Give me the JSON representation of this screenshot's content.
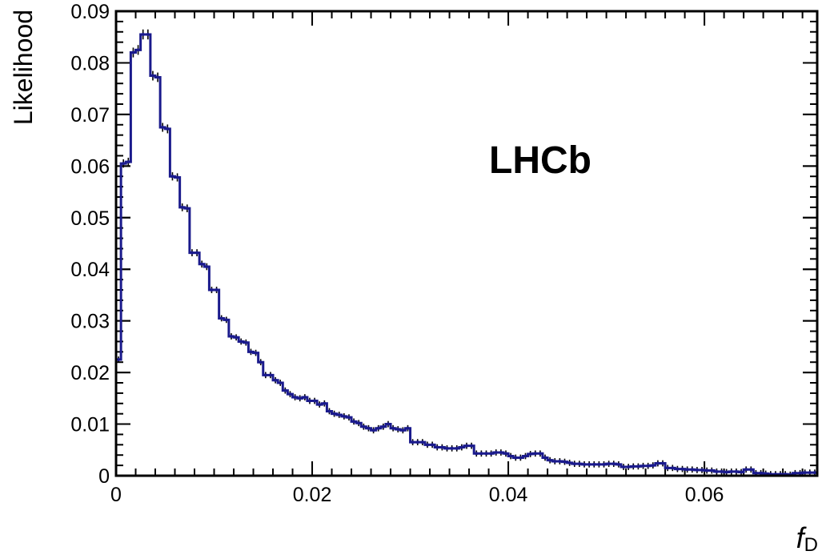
{
  "chart_data": {
    "type": "histogram",
    "annotation": "LHCb",
    "xlabel_symbol": "f",
    "xlabel_sub": "D",
    "ylabel": "Likelihood",
    "xlim": [
      0,
      0.0715
    ],
    "ylim": [
      0,
      0.09
    ],
    "xticks": [
      0,
      0.02,
      0.04,
      0.06
    ],
    "xtick_labels": [
      "0",
      "0.02",
      "0.04",
      "0.06"
    ],
    "yticks": [
      0,
      0.01,
      0.02,
      0.03,
      0.04,
      0.05,
      0.06,
      0.07,
      0.08,
      0.09
    ],
    "ytick_labels": [
      "0",
      "0.01",
      "0.02",
      "0.03",
      "0.04",
      "0.05",
      "0.06",
      "0.07",
      "0.08",
      "0.09"
    ],
    "bin_width": 0.0005,
    "line_color": "#1a1a8c",
    "values": [
      0.0225,
      0.0605,
      0.0608,
      0.082,
      0.0825,
      0.0855,
      0.0855,
      0.0775,
      0.0772,
      0.0675,
      0.0672,
      0.058,
      0.0578,
      0.052,
      0.0518,
      0.0432,
      0.0432,
      0.041,
      0.0405,
      0.036,
      0.036,
      0.0305,
      0.0302,
      0.027,
      0.0268,
      0.026,
      0.0258,
      0.024,
      0.0238,
      0.022,
      0.0195,
      0.0195,
      0.0185,
      0.018,
      0.0165,
      0.0158,
      0.0152,
      0.015,
      0.0152,
      0.0145,
      0.0145,
      0.0138,
      0.014,
      0.0125,
      0.012,
      0.0118,
      0.0115,
      0.0113,
      0.0105,
      0.0102,
      0.0095,
      0.0092,
      0.0088,
      0.0092,
      0.0095,
      0.01,
      0.0092,
      0.009,
      0.0088,
      0.0092,
      0.0065,
      0.0065,
      0.0065,
      0.006,
      0.006,
      0.0055,
      0.0055,
      0.0053,
      0.0053,
      0.0053,
      0.0055,
      0.0058,
      0.0058,
      0.0043,
      0.0043,
      0.0043,
      0.0043,
      0.0045,
      0.0045,
      0.0043,
      0.0038,
      0.0035,
      0.0035,
      0.0038,
      0.0042,
      0.0043,
      0.0043,
      0.0035,
      0.003,
      0.0028,
      0.0028,
      0.0027,
      0.0025,
      0.0023,
      0.0023,
      0.0022,
      0.0022,
      0.0022,
      0.0022,
      0.0022,
      0.0023,
      0.0023,
      0.0022,
      0.0017,
      0.0017,
      0.0018,
      0.0018,
      0.0019,
      0.0019,
      0.002,
      0.0024,
      0.0024,
      0.0015,
      0.0015,
      0.0013,
      0.0013,
      0.0012,
      0.0012,
      0.0011,
      0.0011,
      0.001,
      0.001,
      0.0008,
      0.0008,
      0.0007,
      0.0008,
      0.0008,
      0.0007,
      0.0012,
      0.0012,
      0.0005,
      0.0005,
      0.0004,
      0.0003,
      0.0003,
      0.0003,
      0.0003,
      0.0002,
      0.0005,
      0.0005,
      0.0006,
      0.0006,
      0.0006
    ]
  }
}
